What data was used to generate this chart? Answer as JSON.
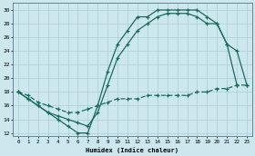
{
  "xlabel": "Humidex (Indice chaleur)",
  "bg_color": "#cce8ee",
  "grid_color": "#aacdd5",
  "line_color": "#1a6b5a",
  "xlim": [
    -0.5,
    23.5
  ],
  "ylim": [
    11.5,
    31
  ],
  "xticks": [
    0,
    1,
    2,
    3,
    4,
    5,
    6,
    7,
    8,
    9,
    10,
    11,
    12,
    13,
    14,
    15,
    16,
    17,
    18,
    19,
    20,
    21,
    22,
    23
  ],
  "yticks": [
    12,
    14,
    16,
    18,
    20,
    22,
    24,
    26,
    28,
    30
  ],
  "curve1_x": [
    0,
    1,
    2,
    3,
    4,
    5,
    6,
    7,
    8,
    9,
    10,
    11,
    12,
    13,
    14,
    15,
    16,
    17,
    18,
    19,
    20,
    21,
    22
  ],
  "curve1_y": [
    18,
    17,
    16,
    15,
    14,
    13,
    12,
    12,
    16,
    21,
    25,
    27,
    29,
    29,
    30,
    30,
    30,
    30,
    30,
    29,
    28,
    25,
    19
  ],
  "curve2_x": [
    0,
    1,
    2,
    3,
    4,
    5,
    6,
    7,
    8,
    9,
    10,
    11,
    12,
    13,
    14,
    15,
    16,
    17,
    18,
    19,
    20,
    21,
    22,
    23
  ],
  "curve2_y": [
    18,
    17,
    16,
    15,
    14.5,
    14,
    13.5,
    13,
    15,
    19,
    23,
    25,
    27,
    28,
    29,
    29.5,
    29.5,
    29.5,
    29,
    28,
    28,
    25,
    24,
    19
  ],
  "curve3_x": [
    0,
    1,
    2,
    3,
    4,
    5,
    6,
    7,
    8,
    9,
    10,
    11,
    12,
    13,
    14,
    15,
    16,
    17,
    18,
    19,
    20,
    21,
    22,
    23
  ],
  "curve3_y": [
    18,
    17.5,
    16.5,
    16,
    15.5,
    15,
    15,
    15.5,
    16,
    16.5,
    17,
    17,
    17,
    17.5,
    17.5,
    17.5,
    17.5,
    17.5,
    18,
    18,
    18.5,
    18.5,
    19,
    19
  ]
}
